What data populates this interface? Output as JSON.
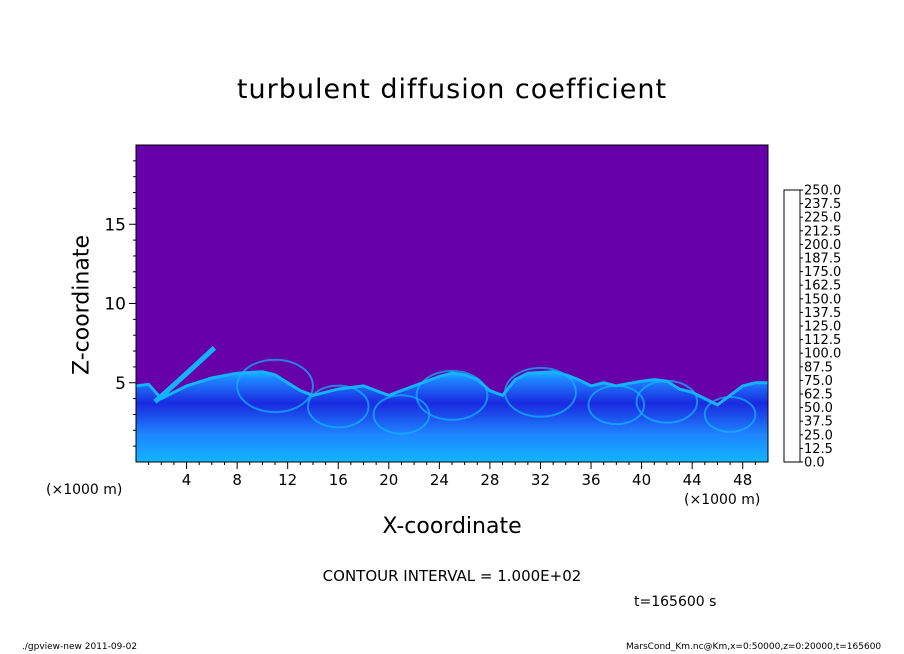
{
  "chart_data": {
    "type": "heatmap",
    "title": "turbulent diffusion coefficient",
    "xlabel": "X-coordinate",
    "ylabel": "Z-coordinate",
    "x_unit": "(×1000 m)",
    "y_unit": "(×1000 m)",
    "xlim": [
      0,
      50
    ],
    "ylim": [
      0,
      20
    ],
    "x_ticks": [
      4,
      8,
      12,
      16,
      20,
      24,
      28,
      32,
      36,
      40,
      44,
      48
    ],
    "y_ticks": [
      5,
      10,
      15
    ],
    "colorbar": {
      "levels": [
        "0.0",
        "12.5",
        "25.0",
        "37.5",
        "50.0",
        "62.5",
        "75.0",
        "87.5",
        "100.0",
        "112.5",
        "125.0",
        "137.5",
        "150.0",
        "162.5",
        "175.0",
        "187.5",
        "200.0",
        "212.5",
        "225.0",
        "237.5",
        "250.0"
      ],
      "colors": [
        "#6600a8",
        "#2a10b8",
        "#1a2ae0",
        "#1448f2",
        "#1a64ff",
        "#1e86ff",
        "#12b4ff",
        "#00dcec",
        "#00f0bc",
        "#00e890",
        "#00d858",
        "#20e020",
        "#80f000",
        "#c8f000",
        "#f0e000",
        "#ffc000",
        "#ff9000",
        "#ff6000",
        "#ff2020",
        "#ff5a6a"
      ]
    },
    "background_value": "0.0",
    "field_description_colors": {
      "background": "#6600a8",
      "low": "#1a2ae0",
      "mid": "#1e86ff",
      "high": "#12b4ff"
    },
    "surface_height_profile": [
      [
        0,
        4.8
      ],
      [
        1,
        4.9
      ],
      [
        2,
        4.0
      ],
      [
        4,
        4.8
      ],
      [
        6,
        5.3
      ],
      [
        8,
        5.6
      ],
      [
        10,
        5.7
      ],
      [
        11,
        5.5
      ],
      [
        12,
        5.0
      ],
      [
        13,
        4.5
      ],
      [
        14,
        4.2
      ],
      [
        16,
        4.6
      ],
      [
        18,
        4.8
      ],
      [
        19,
        4.5
      ],
      [
        20,
        4.2
      ],
      [
        22,
        4.8
      ],
      [
        24,
        5.4
      ],
      [
        25,
        5.6
      ],
      [
        26,
        5.5
      ],
      [
        27,
        5.2
      ],
      [
        28,
        4.5
      ],
      [
        29,
        4.2
      ],
      [
        30,
        5.2
      ],
      [
        31,
        5.6
      ],
      [
        33,
        5.7
      ],
      [
        34,
        5.5
      ],
      [
        35,
        5.2
      ],
      [
        36,
        4.8
      ],
      [
        37,
        5.0
      ],
      [
        38,
        4.8
      ],
      [
        40,
        5.1
      ],
      [
        41,
        5.2
      ],
      [
        42,
        5.1
      ],
      [
        43,
        4.6
      ],
      [
        44,
        4.4
      ],
      [
        45,
        4.0
      ],
      [
        46,
        3.6
      ],
      [
        47,
        4.2
      ],
      [
        48,
        4.8
      ],
      [
        49,
        5.0
      ],
      [
        50,
        5.0
      ]
    ]
  },
  "contour_interval_text": "CONTOUR INTERVAL = 1.000E+02",
  "time_text": "t=165600 s",
  "footer_left": "./gpview-new  2011-09-02",
  "footer_right": "MarsCond_Km.nc@Km,x=0:50000,z=0:20000,t=165600"
}
